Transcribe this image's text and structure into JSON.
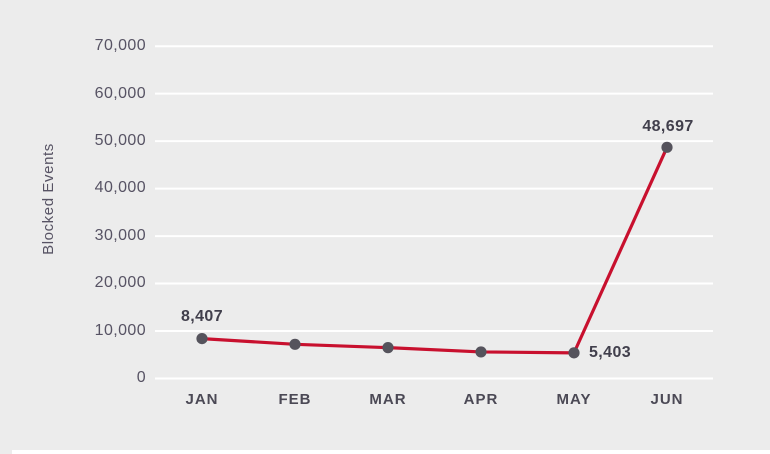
{
  "chart_data": {
    "type": "line",
    "title": "",
    "ylabel": "Blocked Events",
    "xlabel": "",
    "categories": [
      "JAN",
      "FEB",
      "MAR",
      "APR",
      "MAY",
      "JUN"
    ],
    "series": [
      {
        "name": "Blocked Events",
        "values": [
          8407,
          7200,
          6500,
          5600,
          5403,
          48697
        ]
      }
    ],
    "labeled_points": [
      {
        "category": "JAN",
        "text": "8,407",
        "placement": "above"
      },
      {
        "category": "MAY",
        "text": "5,403",
        "placement": "right"
      },
      {
        "category": "JUN",
        "text": "48,697",
        "placement": "above"
      }
    ],
    "ylim": [
      0,
      70000
    ],
    "ytick_step": 10000,
    "ytick_labels_top_to_bottom": [
      "70,000",
      "60,000",
      "50,000",
      "40,000",
      "30,000",
      "20,000",
      "10,000",
      "0"
    ],
    "grid": "horizontal-white-lines",
    "legend": "none",
    "marker": "filled-circle"
  },
  "colors": {
    "background": "#ececec",
    "gridline": "#ffffff",
    "line": "#c8102e",
    "marker": "#55535c",
    "axis_text": "#575364",
    "month_text": "#4b4955",
    "data_label_text": "#413f4c"
  }
}
